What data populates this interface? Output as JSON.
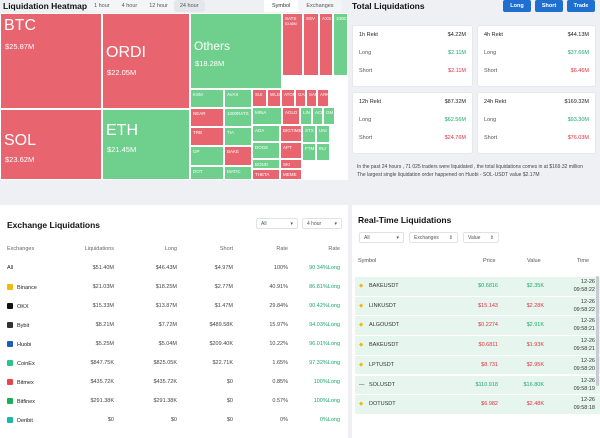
{
  "heatmap": {
    "title": "Liquidation Heatmap",
    "tabs": [
      "1 hour",
      "4 hour",
      "12 hour",
      "24 hour"
    ],
    "active_tab": 3,
    "segments": [
      "Symbol",
      "Exchanges"
    ],
    "active_segment": 0,
    "tiles_big": [
      {
        "name": "BTC",
        "value": "$25.87M",
        "color": "red"
      },
      {
        "name": "SOL",
        "value": "$23.62M",
        "color": "red"
      },
      {
        "name": "ORDI",
        "value": "$22.05M",
        "color": "red"
      },
      {
        "name": "ETH",
        "value": "$21.45M",
        "color": "green"
      },
      {
        "name": "Others",
        "value": "$18.28M",
        "color": "green"
      }
    ],
    "tiles_small": [
      {
        "name": "SATS",
        "value": "$3.68M",
        "color": "red"
      },
      {
        "name": "SSV",
        "value": "",
        "color": "red"
      },
      {
        "name": "AXS",
        "value": "",
        "color": "red"
      },
      {
        "name": "1000",
        "value": "",
        "color": "green"
      },
      {
        "name": "KSM",
        "value": "",
        "color": "green"
      },
      {
        "name": "AVAX",
        "value": "",
        "color": "green"
      },
      {
        "name": "NEAR",
        "value": "",
        "color": "red"
      },
      {
        "name": "TRB",
        "value": "",
        "color": "red"
      },
      {
        "name": "OP",
        "value": "",
        "color": "green"
      },
      {
        "name": "DOT",
        "value": "",
        "color": "green"
      },
      {
        "name": "1000RATS",
        "value": "",
        "color": "green"
      },
      {
        "name": "TIA",
        "value": "",
        "color": "green"
      },
      {
        "name": "BAKE",
        "value": "",
        "color": "red"
      },
      {
        "name": "MATIC",
        "value": "",
        "color": "green"
      },
      {
        "name": "SUI",
        "value": "",
        "color": "red"
      },
      {
        "name": "WLD",
        "value": "",
        "color": "red"
      },
      {
        "name": "ATOM",
        "value": "",
        "color": "red"
      },
      {
        "name": "GAL",
        "value": "",
        "color": "red"
      },
      {
        "name": "SAN",
        "value": "",
        "color": "red"
      },
      {
        "name": "ARK",
        "value": "",
        "color": "red"
      },
      {
        "name": "MINA",
        "value": "",
        "color": "green"
      },
      {
        "name": "AGLD",
        "value": "",
        "color": "red"
      },
      {
        "name": "LIN",
        "value": "",
        "color": "green"
      },
      {
        "name": "ACE",
        "value": "",
        "color": "green"
      },
      {
        "name": "GM",
        "value": "",
        "color": "green"
      },
      {
        "name": "ADA",
        "value": "",
        "color": "green"
      },
      {
        "name": "BIGTIME",
        "value": "",
        "color": "red"
      },
      {
        "name": "DOGE",
        "value": "",
        "color": "green"
      },
      {
        "name": "APT",
        "value": "",
        "color": "red"
      },
      {
        "name": "BOND",
        "value": "",
        "color": "green"
      },
      {
        "name": "SKI",
        "value": "",
        "color": "red"
      },
      {
        "name": "THETA",
        "value": "",
        "color": "red"
      },
      {
        "name": "MEME",
        "value": "",
        "color": "red"
      },
      {
        "name": "STX",
        "value": "",
        "color": "green"
      },
      {
        "name": "UNI",
        "value": "",
        "color": "green"
      },
      {
        "name": "FTM",
        "value": "",
        "color": "green"
      },
      {
        "name": "INJ",
        "value": "",
        "color": "green"
      }
    ]
  },
  "totals": {
    "title": "Total Liquidations",
    "buttons": [
      "Long",
      "Short",
      "Trade"
    ],
    "cards": [
      {
        "label": "1h Rekt",
        "total": "$4.22M",
        "long": "$2.11M",
        "short": "$2.11M"
      },
      {
        "label": "4h Rekt",
        "total": "$44.13M",
        "long": "$37.66M",
        "short": "$6.46M"
      },
      {
        "label": "12h Rekt",
        "total": "$87.32M",
        "long": "$62.56M",
        "short": "$24.76M"
      },
      {
        "label": "24h Rekt",
        "total": "$169.32M",
        "long": "$93.30M",
        "short": "$76.03M"
      }
    ],
    "long_label": "Long",
    "short_label": "Short",
    "note1": "In the past 24 hours , 71 025 traders were liquidated , the total liquidations comes in at $169.32 million",
    "note2": "The largest single liquidation order happened on Huobi - SOL-USDT value $2.17M"
  },
  "exchange": {
    "title": "Exchange Liquidations",
    "filter": "All",
    "period": "4 hour",
    "columns": [
      "Exchanges",
      "Liquidations",
      "Long",
      "Short",
      "Rate",
      "Rate"
    ],
    "rows": [
      {
        "name": "All",
        "liq": "$51.40M",
        "long": "$46.43M",
        "short": "$4.97M",
        "rate": "100%",
        "rate2": "90.34%Long",
        "logo": ""
      },
      {
        "name": "Binance",
        "liq": "$21.03M",
        "long": "$18.25M",
        "short": "$2.77M",
        "rate": "40.91%",
        "rate2": "86.81%Long",
        "logo": "#f0b90b"
      },
      {
        "name": "OKX",
        "liq": "$15.33M",
        "long": "$13.87M",
        "short": "$1.47M",
        "rate": "29.84%",
        "rate2": "90.42%Long",
        "logo": "#111111"
      },
      {
        "name": "Bybit",
        "liq": "$8.21M",
        "long": "$7.72M",
        "short": "$489.58K",
        "rate": "15.97%",
        "rate2": "94.03%Long",
        "logo": "#333333"
      },
      {
        "name": "Huobi",
        "liq": "$5.25M",
        "long": "$5.04M",
        "short": "$209.40K",
        "rate": "10.22%",
        "rate2": "96.01%Long",
        "logo": "#1b5fb8"
      },
      {
        "name": "CoinEx",
        "liq": "$847.75K",
        "long": "$825.05K",
        "short": "$22.71K",
        "rate": "1.65%",
        "rate2": "97.32%Long",
        "logo": "#2cc38a"
      },
      {
        "name": "Bitmex",
        "liq": "$435.72K",
        "long": "$435.72K",
        "short": "$0",
        "rate": "0.85%",
        "rate2": "100%Long",
        "logo": "#e8454b"
      },
      {
        "name": "Bitfinex",
        "liq": "$291.38K",
        "long": "$291.38K",
        "short": "$0",
        "rate": "0.57%",
        "rate2": "100%Long",
        "logo": "#16b157"
      },
      {
        "name": "Deribit",
        "liq": "$0",
        "long": "$0",
        "short": "$0",
        "rate": "0%",
        "rate2": "0%Long",
        "logo": "#1cb8a8"
      }
    ]
  },
  "realtime": {
    "title": "Real-Time Liquidations",
    "filters": [
      "All",
      "Exchanges",
      "Value"
    ],
    "columns": [
      "Symbol",
      "Price",
      "Value",
      "Time"
    ],
    "rows": [
      {
        "symbol": "BAKEUSDT",
        "price": "$0.6816",
        "value": "$2.35K",
        "date": "12-26",
        "time": "09:58:22",
        "color": "green",
        "logo": "#f0b90b"
      },
      {
        "symbol": "LINKUSDT",
        "price": "$15.143",
        "value": "$2.28K",
        "date": "12-26",
        "time": "09:58:22",
        "color": "red",
        "logo": "#f0b90b"
      },
      {
        "symbol": "ALGOUSDT",
        "price": "$0.2274",
        "value": "$2.91K",
        "date": "12-26",
        "time": "09:58:21",
        "color": "mixed",
        "logo": "#f0b90b"
      },
      {
        "symbol": "BAKEUSDT",
        "price": "$0.6811",
        "value": "$1.93K",
        "date": "12-26",
        "time": "09:58:21",
        "color": "red",
        "logo": "#f0b90b"
      },
      {
        "symbol": "LPTUSDT",
        "price": "$8.731",
        "value": "$2.95K",
        "date": "12-26",
        "time": "09:58:20",
        "color": "red",
        "logo": "#f0b90b"
      },
      {
        "symbol": "SOLUSDT",
        "price": "$110.918",
        "value": "$16.80K",
        "date": "12-26",
        "time": "09:58:19",
        "color": "green",
        "logo": "#333333"
      },
      {
        "symbol": "DOTUSDT",
        "price": "$6.982",
        "value": "$2.48K",
        "date": "12-26",
        "time": "09:58:18",
        "color": "red",
        "logo": "#f0b90b"
      }
    ]
  }
}
